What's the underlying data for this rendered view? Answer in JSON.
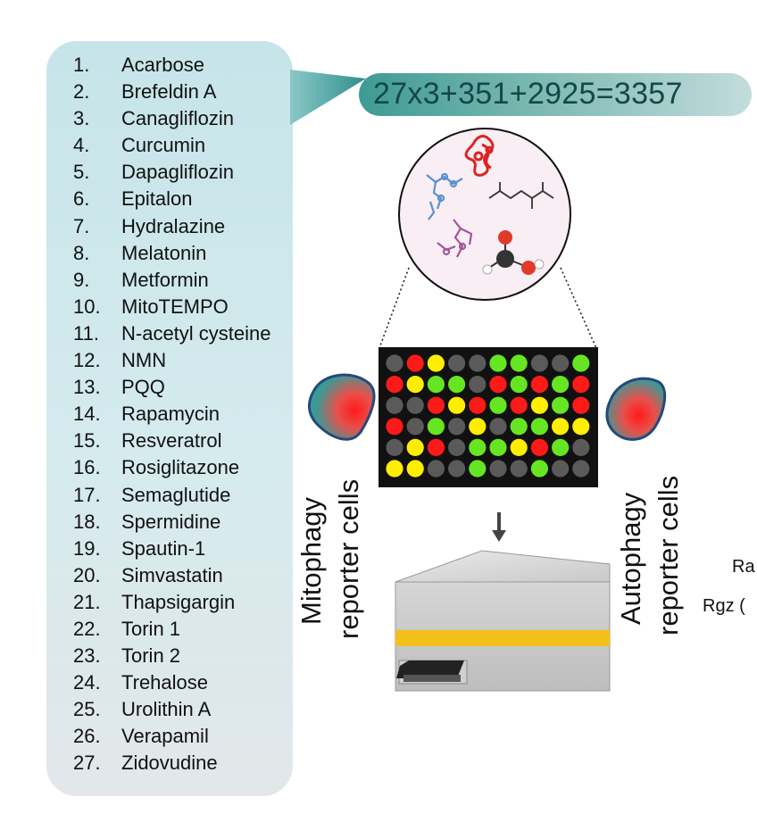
{
  "compounds": [
    {
      "num": "1.",
      "name": "Acarbose"
    },
    {
      "num": "2.",
      "name": "Brefeldin A"
    },
    {
      "num": "3.",
      "name": "Canagliflozin"
    },
    {
      "num": "4.",
      "name": "Curcumin"
    },
    {
      "num": "5.",
      "name": "Dapagliflozin"
    },
    {
      "num": "6.",
      "name": "Epitalon"
    },
    {
      "num": "7.",
      "name": "Hydralazine"
    },
    {
      "num": "8.",
      "name": "Melatonin"
    },
    {
      "num": "9.",
      "name": "Metformin"
    },
    {
      "num": "10.",
      "name": "MitoTEMPO"
    },
    {
      "num": "11.",
      "name": "N-acetyl cysteine"
    },
    {
      "num": "12.",
      "name": "NMN"
    },
    {
      "num": "13.",
      "name": "PQQ"
    },
    {
      "num": "14.",
      "name": "Rapamycin"
    },
    {
      "num": "15.",
      "name": "Resveratrol"
    },
    {
      "num": "16.",
      "name": "Rosiglitazone"
    },
    {
      "num": "17.",
      "name": "Semaglutide"
    },
    {
      "num": "18.",
      "name": "Spermidine"
    },
    {
      "num": "19.",
      "name": "Spautin-1"
    },
    {
      "num": "20.",
      "name": "Simvastatin"
    },
    {
      "num": "21.",
      "name": "Thapsigargin"
    },
    {
      "num": "22.",
      "name": "Torin 1"
    },
    {
      "num": "23.",
      "name": "Torin 2"
    },
    {
      "num": "24.",
      "name": "Trehalose"
    },
    {
      "num": "25.",
      "name": "Urolithin A"
    },
    {
      "num": "26.",
      "name": "Verapamil"
    },
    {
      "num": "27.",
      "name": "Zidovudine"
    }
  ],
  "equation": "27x3+351+2925=3357",
  "labels": {
    "mitophagy_line1": "Mitophagy",
    "mitophagy_line2": "reporter cells",
    "autophagy_line1": "Autophagy",
    "autophagy_line2": "reporter cells"
  },
  "edge_text": {
    "line1": "Ra",
    "line2": "Rgz ("
  },
  "well_plate": {
    "rows": [
      [
        "grey",
        "red",
        "yellow",
        "grey",
        "grey",
        "green",
        "green",
        "grey",
        "grey",
        "green"
      ],
      [
        "red",
        "yellow",
        "green",
        "green",
        "grey",
        "red",
        "green",
        "red",
        "green",
        "red"
      ],
      [
        "grey",
        "grey",
        "red",
        "yellow",
        "red",
        "green",
        "red",
        "yellow",
        "green",
        "red"
      ],
      [
        "red",
        "grey",
        "green",
        "grey",
        "yellow",
        "grey",
        "green",
        "green",
        "yellow",
        "yellow"
      ],
      [
        "grey",
        "yellow",
        "red",
        "grey",
        "green",
        "green",
        "yellow",
        "red",
        "green",
        "grey"
      ],
      [
        "yellow",
        "yellow",
        "grey",
        "grey",
        "green",
        "grey",
        "grey",
        "green",
        "grey",
        "grey"
      ]
    ]
  },
  "colors": {
    "red": "#ff1a1a",
    "yellow": "#ffee00",
    "green": "#66e622",
    "grey": "#5a5a5a",
    "plate": "#111111",
    "panel": "#c9e6ea",
    "equation_bg": "#4fa39d"
  },
  "icons": {
    "molecule_circle": "molecule-cluster-icon",
    "reporter_cell": "reporter-cell-icon",
    "plate_reader": "plate-reader-icon",
    "down_arrow": "down-arrow-icon"
  }
}
